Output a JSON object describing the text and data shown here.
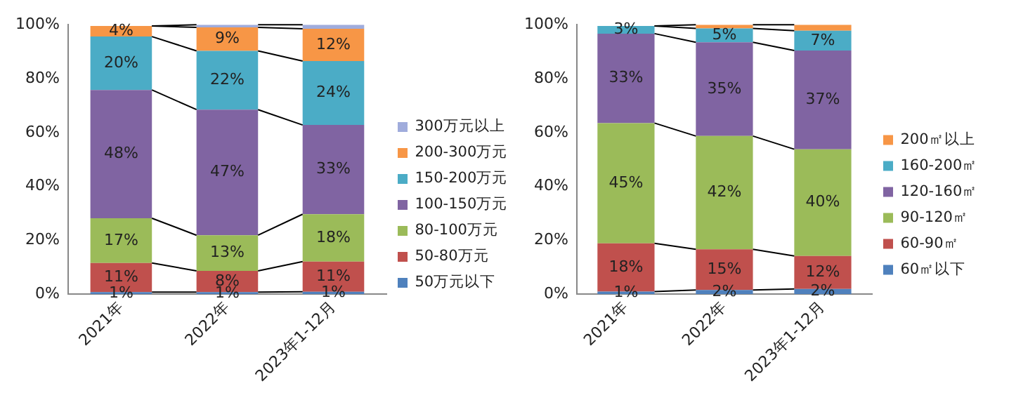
{
  "chart_data": [
    {
      "type": "bar",
      "stacked": true,
      "categories": [
        "2021年",
        "2022年",
        "2023年1-12月"
      ],
      "ylim": [
        0,
        100
      ],
      "yticks": [
        {
          "value": 0,
          "label": "0%"
        },
        {
          "value": 20,
          "label": "20%"
        },
        {
          "value": 40,
          "label": "40%"
        },
        {
          "value": 60,
          "label": "60%"
        },
        {
          "value": 80,
          "label": "80%"
        },
        {
          "value": 100,
          "label": "100%"
        }
      ],
      "grid": false,
      "legend": "right",
      "series": [
        {
          "name": "50万元以下",
          "color": "#4f81bd",
          "values": [
            0.8,
            0.8,
            0.9
          ],
          "value_labels": [
            "1%",
            "1%",
            "1%"
          ]
        },
        {
          "name": "50-80万元",
          "color": "#c0504d",
          "values": [
            10.8,
            7.9,
            11.2
          ],
          "value_labels": [
            "11%",
            "8%",
            "11%"
          ]
        },
        {
          "name": "80-100万元",
          "color": "#9bbb59",
          "values": [
            16.6,
            13.2,
            17.6
          ],
          "value_labels": [
            "17%",
            "13%",
            "18%"
          ]
        },
        {
          "name": "100-150万元",
          "color": "#8064a2",
          "values": [
            47.6,
            46.6,
            33.1
          ],
          "value_labels": [
            "48%",
            "47%",
            "33%"
          ]
        },
        {
          "name": "150-200万元",
          "color": "#4bacc6",
          "values": [
            19.8,
            21.8,
            23.7
          ],
          "value_labels": [
            "20%",
            "22%",
            "24%"
          ]
        },
        {
          "name": "200-300万元",
          "color": "#f79646",
          "values": [
            3.9,
            8.7,
            12.0
          ],
          "value_labels": [
            "4%",
            "9%",
            "12%"
          ]
        },
        {
          "name": "300万元以上",
          "color": "#a0acdc",
          "values": [
            null,
            1.0,
            1.5
          ],
          "value_labels": [
            null,
            null,
            null
          ]
        }
      ]
    },
    {
      "type": "bar",
      "stacked": true,
      "categories": [
        "2021年",
        "2022年",
        "2023年1-12月"
      ],
      "ylim": [
        0,
        100
      ],
      "yticks": [
        {
          "value": 0,
          "label": "0%"
        },
        {
          "value": 20,
          "label": "20%"
        },
        {
          "value": 40,
          "label": "40%"
        },
        {
          "value": 60,
          "label": "60%"
        },
        {
          "value": 80,
          "label": "80%"
        },
        {
          "value": 100,
          "label": "100%"
        }
      ],
      "grid": false,
      "legend": "right",
      "series": [
        {
          "name": "60㎡以下",
          "color": "#4f81bd",
          "values": [
            1.0,
            1.6,
            2.0
          ],
          "value_labels": [
            "1%",
            "2%",
            "2%"
          ]
        },
        {
          "name": "60-90㎡",
          "color": "#c0504d",
          "values": [
            17.9,
            15.1,
            12.2
          ],
          "value_labels": [
            "18%",
            "15%",
            "12%"
          ]
        },
        {
          "name": "90-120㎡",
          "color": "#9bbb59",
          "values": [
            44.6,
            42.0,
            39.6
          ],
          "value_labels": [
            "45%",
            "42%",
            "40%"
          ]
        },
        {
          "name": "120-160㎡",
          "color": "#8064a2",
          "values": [
            33.2,
            34.8,
            36.6
          ],
          "value_labels": [
            "33%",
            "35%",
            "37%"
          ]
        },
        {
          "name": "160-200㎡",
          "color": "#4bacc6",
          "values": [
            2.8,
            5.1,
            7.4
          ],
          "value_labels": [
            "3%",
            "5%",
            "7%"
          ]
        },
        {
          "name": "200㎡以上",
          "color": "#f79646",
          "values": [
            null,
            1.4,
            2.2
          ],
          "value_labels": [
            null,
            null,
            null
          ]
        }
      ]
    }
  ]
}
